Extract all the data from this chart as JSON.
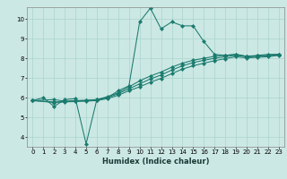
{
  "xlabel": "Humidex (Indice chaleur)",
  "bg_color": "#cce8e4",
  "grid_color": "#a8d4cc",
  "line_color": "#1a7a6e",
  "xlim": [
    -0.5,
    23.5
  ],
  "ylim": [
    3.5,
    10.6
  ],
  "xticks": [
    0,
    1,
    2,
    3,
    4,
    5,
    6,
    7,
    8,
    9,
    10,
    11,
    12,
    13,
    14,
    15,
    16,
    17,
    18,
    19,
    20,
    21,
    22,
    23
  ],
  "yticks": [
    4,
    5,
    6,
    7,
    8,
    9,
    10
  ],
  "line1_x": [
    0,
    1,
    2,
    3,
    4,
    5,
    6,
    7,
    8,
    9,
    10,
    11,
    12,
    13,
    14,
    15,
    16,
    17,
    18,
    19,
    20,
    21,
    22,
    23
  ],
  "line1_y": [
    5.85,
    6.0,
    5.55,
    5.9,
    5.95,
    3.65,
    5.9,
    6.0,
    6.35,
    6.6,
    9.85,
    10.55,
    9.5,
    9.85,
    9.65,
    9.65,
    8.85,
    8.2,
    8.15,
    8.2,
    8.1,
    8.15,
    8.2,
    8.2
  ],
  "line2_x": [
    0,
    2,
    3,
    4,
    5,
    6,
    7,
    8,
    9,
    10,
    11,
    12,
    13,
    14,
    15,
    16,
    17,
    18,
    19,
    20,
    21,
    22,
    23
  ],
  "line2_y": [
    5.85,
    5.9,
    5.82,
    5.85,
    5.87,
    5.9,
    6.05,
    6.25,
    6.55,
    6.85,
    7.1,
    7.3,
    7.55,
    7.75,
    7.9,
    8.0,
    8.1,
    8.15,
    8.2,
    8.1,
    8.12,
    8.15,
    8.2
  ],
  "line3_x": [
    0,
    2,
    3,
    4,
    5,
    6,
    7,
    8,
    9,
    10,
    11,
    12,
    13,
    14,
    15,
    16,
    17,
    18,
    19,
    20,
    21,
    22,
    23
  ],
  "line3_y": [
    5.85,
    5.78,
    5.8,
    5.82,
    5.85,
    5.88,
    6.0,
    6.2,
    6.45,
    6.7,
    6.95,
    7.15,
    7.4,
    7.62,
    7.78,
    7.9,
    8.0,
    8.08,
    8.15,
    8.08,
    8.1,
    8.12,
    8.18
  ],
  "line4_x": [
    0,
    2,
    3,
    4,
    5,
    6,
    7,
    8,
    9,
    10,
    11,
    12,
    13,
    14,
    15,
    16,
    17,
    18,
    19,
    20,
    21,
    22,
    23
  ],
  "line4_y": [
    5.85,
    5.75,
    5.78,
    5.8,
    5.82,
    5.85,
    5.95,
    6.12,
    6.35,
    6.55,
    6.78,
    6.98,
    7.22,
    7.45,
    7.62,
    7.75,
    7.88,
    7.98,
    8.08,
    8.02,
    8.05,
    8.08,
    8.15
  ]
}
